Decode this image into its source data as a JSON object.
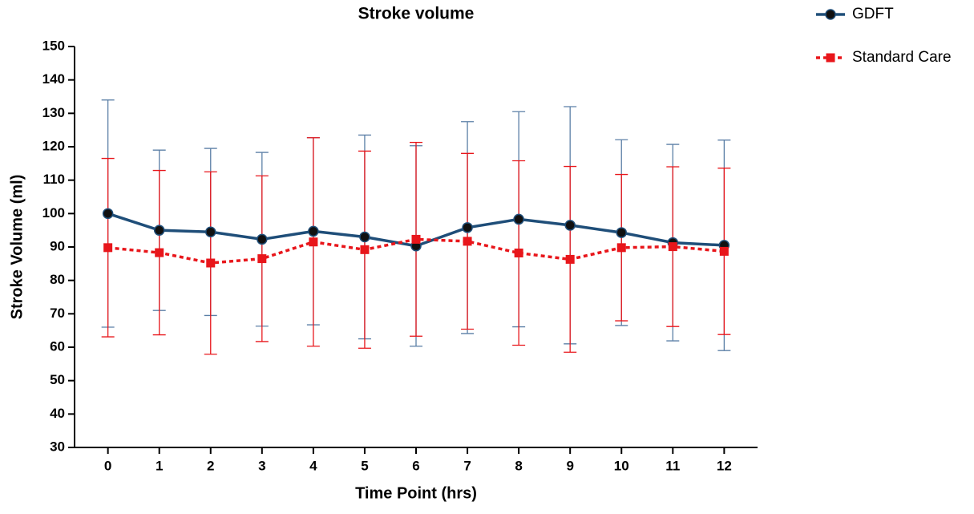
{
  "chart_data": {
    "type": "line",
    "title": "Stroke volume",
    "x_label": "Time Point (hrs)",
    "y_label": "Stroke Volume (ml)",
    "x": [
      0,
      1,
      2,
      3,
      4,
      5,
      6,
      7,
      8,
      9,
      10,
      11,
      12
    ],
    "xlim": [
      -0.65,
      12.65
    ],
    "xticks": [
      0,
      1,
      2,
      3,
      4,
      5,
      6,
      7,
      8,
      9,
      10,
      11,
      12
    ],
    "ylim": [
      30,
      150
    ],
    "yticks": [
      30,
      40,
      50,
      60,
      70,
      80,
      90,
      100,
      110,
      120,
      130,
      140,
      150
    ],
    "series": [
      {
        "name": "GDFT",
        "color": "#1f4e79",
        "marker": "circle",
        "dash": false,
        "error_color": "#5b7fa6",
        "values": [
          100,
          95,
          94.5,
          92.3,
          94.7,
          93,
          90.3,
          95.8,
          98.3,
          96.5,
          94.3,
          91.3,
          90.5
        ],
        "errors": [
          34,
          24,
          25,
          26,
          28,
          30.5,
          30,
          31.7,
          32.2,
          35.5,
          27.8,
          29.4,
          31.5
        ]
      },
      {
        "name": "Standard Care",
        "color": "#e8161b",
        "marker": "square",
        "dash": true,
        "error_color": "#e8161b",
        "values": [
          89.8,
          88.3,
          85.2,
          86.5,
          91.5,
          89.2,
          92.3,
          91.7,
          88.2,
          86.3,
          89.8,
          90.1,
          88.7
        ],
        "errors": [
          26.7,
          24.6,
          27.3,
          24.8,
          31.2,
          29.5,
          29,
          26.3,
          27.6,
          27.8,
          21.9,
          23.9,
          24.9
        ]
      }
    ]
  }
}
